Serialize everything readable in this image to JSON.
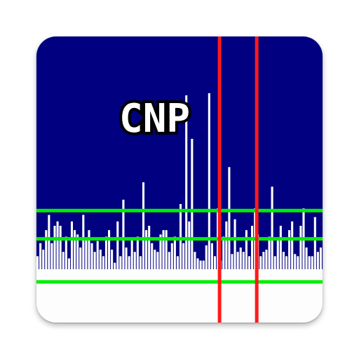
{
  "app_icon": {
    "title": "CNP",
    "colors": {
      "background": "#000080",
      "baseline": "#fdfdfd",
      "bars": "#ffffff",
      "threshold_lines": "#00ee00",
      "markers": "#ff1a1a",
      "title_fill": "#ffffff",
      "title_outline": "#000000"
    }
  },
  "chart_data": {
    "type": "bar",
    "values": [
      0.06,
      0.12,
      0.09,
      0.18,
      0.25,
      0.12,
      0.2,
      0.22,
      0.2,
      0.08,
      0.15,
      0.05,
      0.22,
      0.18,
      0.16,
      0.1,
      0.25,
      0.14,
      0.18,
      0.12,
      0.08,
      0.13,
      0.09,
      0.06,
      0.15,
      0.18,
      0.09,
      0.03,
      0.22,
      0.06,
      0.32,
      0.1,
      0.06,
      0.14,
      0.08,
      0.15,
      0.06,
      0.4,
      0.18,
      0.2,
      0.12,
      0.09,
      0.08,
      0.16,
      0.18,
      0.18,
      0.08,
      0.12,
      0.15,
      0.06,
      0.3,
      0.12,
      0.8,
      0.22,
      0.6,
      0.08,
      0.05,
      0.04,
      0.04,
      0.11,
      0.81,
      0.12,
      0.06,
      0.28,
      0.04,
      0.15,
      0.22,
      0.47,
      0.07,
      0.23,
      0.08,
      0.1,
      0.08,
      0.18,
      0.06,
      0.2,
      0.28,
      0.16,
      0.06,
      0.08,
      0.09,
      0.15,
      0.38,
      0.06,
      0.14,
      0.2,
      0.08,
      0.06,
      0.18,
      0.22,
      0.07,
      0.06,
      0.2,
      0.28,
      0.1,
      0.06,
      0.06,
      0.24,
      0.08,
      0.1
    ],
    "ylim": [
      0,
      1
    ],
    "thresholds": [
      0.27,
      0.14,
      0.0
    ],
    "markers": [
      0.64,
      0.77
    ]
  }
}
